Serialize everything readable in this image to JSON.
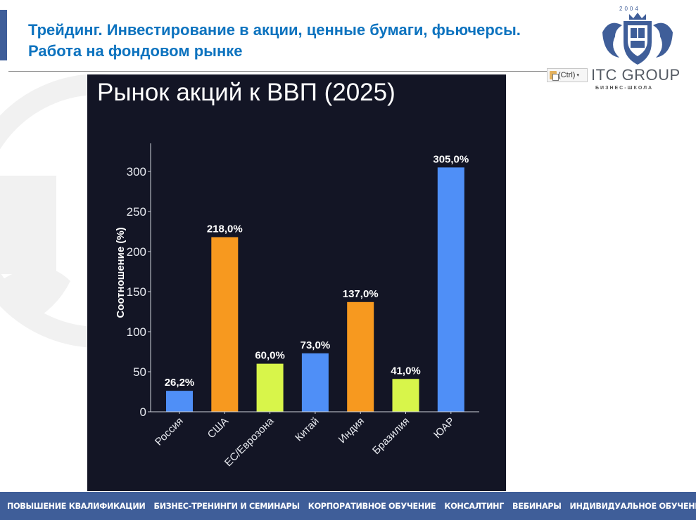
{
  "slide": {
    "header_title": "Трейдинг. Инвестирование в акции, ценные бумаги, фьючерсы. Работа на фондовом рынке",
    "logo": {
      "year": "2004",
      "name": "ITC GROUP",
      "subtitle": "БИЗНЕС-ШКОЛА"
    },
    "paste_options": {
      "label": "(Ctrl)",
      "icon": "clipboard-paste-icon"
    }
  },
  "footer": {
    "items": [
      "ПОВЫШЕНИЕ КВАЛИФИКАЦИИ",
      "БИЗНЕС-ТРЕНИНГИ И СЕМИНАРЫ",
      "КОРПОРАТИВНОЕ ОБУЧЕНИЕ",
      "КОНСАЛТИНГ",
      "ВЕБИНАРЫ",
      "ИНДИВИДУАЛЬНОЕ ОБУЧЕНИЕ"
    ]
  },
  "colors": {
    "brand_blue": "#3f5e99",
    "title_blue": "#0d73bf",
    "chart_bg": "#131525",
    "bar_blue": "#4f8ff7",
    "bar_orange": "#f7991f",
    "bar_lime": "#d8f54a"
  },
  "chart_data": {
    "type": "bar",
    "title": "Рынок акций к ВВП (2025)",
    "xlabel": "",
    "ylabel": "Соотношение (%)",
    "categories": [
      "Россия",
      "США",
      "ЕС/Еврозона",
      "Китай",
      "Индия",
      "Бразилия",
      "ЮАР"
    ],
    "values": [
      26.2,
      218.0,
      60.0,
      73.0,
      137.0,
      41.0,
      305.0
    ],
    "value_labels": [
      "26,2%",
      "218,0%",
      "60,0%",
      "73,0%",
      "137,0%",
      "41,0%",
      "305,0%"
    ],
    "bar_colors": [
      "#4f8ff7",
      "#f7991f",
      "#d8f54a",
      "#4f8ff7",
      "#f7991f",
      "#d8f54a",
      "#4f8ff7"
    ],
    "yticks": [
      0,
      50,
      100,
      150,
      200,
      250,
      300
    ],
    "ylim": [
      0,
      335
    ],
    "grid": false,
    "legend": null
  }
}
